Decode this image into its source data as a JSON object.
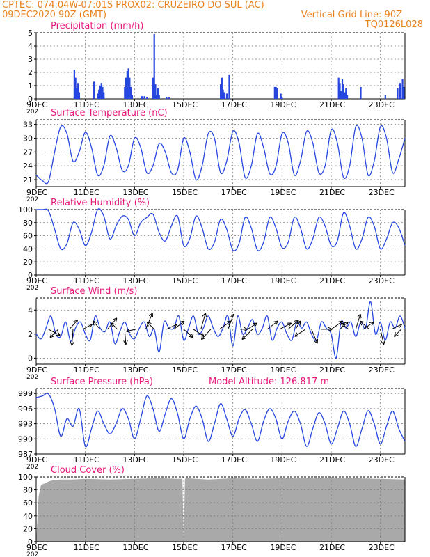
{
  "header": {
    "line1": "CPTEC:   074:04W-07:01S   PROX02: CRUZEIRO DO SUL (AC)",
    "date": "09DEC2020 90Z (GMT)",
    "grid_line": "Vertical Grid Line: 90Z",
    "model": "TQ0126L028",
    "color": "#e8821e"
  },
  "colors": {
    "title": "#e8197c",
    "line": "#2646e0",
    "cloud": "#a9a9a9",
    "arrow": "#000000",
    "grid": "#777777"
  },
  "x_tick_labels": [
    "9DEC",
    "11DEC",
    "13DEC",
    "15DEC",
    "17DEC",
    "19DEC",
    "21DEC",
    "23DEC"
  ],
  "x_tick_days": [
    0,
    2,
    4,
    6,
    8,
    10,
    12,
    14
  ],
  "x_range_days": [
    0,
    15
  ],
  "year_stub": "202",
  "chart_data": [
    {
      "id": "precip",
      "type": "bar",
      "title": "Precipitation (mm/h)",
      "ylim": [
        0,
        5
      ],
      "yticks": [
        0,
        1,
        2,
        3,
        4,
        5
      ],
      "grid": true,
      "bars": [
        [
          1.55,
          2.2
        ],
        [
          1.6,
          1.6
        ],
        [
          1.65,
          0.8
        ],
        [
          1.7,
          1.2
        ],
        [
          1.75,
          0.5
        ],
        [
          2.35,
          1.3
        ],
        [
          2.5,
          0.4
        ],
        [
          2.55,
          0.7
        ],
        [
          2.6,
          1.0
        ],
        [
          2.65,
          1.2
        ],
        [
          2.7,
          0.9
        ],
        [
          2.75,
          0.5
        ],
        [
          3.6,
          0.9
        ],
        [
          3.65,
          1.6
        ],
        [
          3.7,
          2.1
        ],
        [
          3.75,
          2.3
        ],
        [
          3.8,
          1.6
        ],
        [
          3.85,
          0.9
        ],
        [
          3.9,
          0.3
        ],
        [
          4.3,
          0.2
        ],
        [
          4.4,
          0.2
        ],
        [
          4.5,
          0.1
        ],
        [
          4.75,
          1.6
        ],
        [
          4.8,
          4.9
        ],
        [
          4.85,
          1.1
        ],
        [
          4.9,
          0.3
        ],
        [
          4.95,
          0.8
        ],
        [
          5.0,
          0.3
        ],
        [
          5.3,
          0.15
        ],
        [
          5.4,
          0.1
        ],
        [
          7.5,
          1.1
        ],
        [
          7.55,
          1.6
        ],
        [
          7.6,
          0.7
        ],
        [
          7.65,
          0.5
        ],
        [
          7.75,
          0.4
        ],
        [
          7.85,
          1.8
        ],
        [
          9.7,
          0.9
        ],
        [
          9.75,
          0.9
        ],
        [
          9.8,
          0.8
        ],
        [
          9.95,
          0.4
        ],
        [
          10.0,
          0.1
        ],
        [
          12.3,
          1.6
        ],
        [
          12.35,
          1.2
        ],
        [
          12.4,
          0.6
        ],
        [
          12.45,
          1.5
        ],
        [
          12.5,
          1.1
        ],
        [
          12.55,
          0.5
        ],
        [
          12.6,
          0.8
        ],
        [
          12.65,
          0.3
        ],
        [
          13.2,
          0.9
        ],
        [
          14.2,
          0.3
        ],
        [
          14.7,
          0.8
        ],
        [
          14.8,
          1.2
        ],
        [
          14.9,
          1.5
        ],
        [
          14.95,
          0.9
        ]
      ]
    },
    {
      "id": "temp",
      "type": "line",
      "title": "Surface Temperature (nC)",
      "ylim": [
        19.5,
        34
      ],
      "yticks": [
        21,
        24,
        27,
        30,
        33
      ],
      "grid": true,
      "x": [
        0,
        0.25,
        0.5,
        0.75,
        1,
        1.25,
        1.5,
        1.75,
        2,
        2.25,
        2.5,
        2.75,
        3,
        3.25,
        3.5,
        3.75,
        4,
        4.25,
        4.5,
        4.75,
        5,
        5.25,
        5.5,
        5.75,
        6,
        6.25,
        6.5,
        6.75,
        7,
        7.25,
        7.5,
        7.75,
        8,
        8.25,
        8.5,
        8.75,
        9,
        9.25,
        9.5,
        9.75,
        10,
        10.25,
        10.5,
        10.75,
        11,
        11.25,
        11.5,
        11.75,
        12,
        12.25,
        12.5,
        12.75,
        13,
        13.25,
        13.5,
        13.75,
        14,
        14.25,
        14.5,
        14.75,
        15
      ],
      "y": [
        22,
        20.8,
        20.6,
        27,
        32.5,
        31,
        25,
        27,
        31.3,
        28,
        22,
        24,
        30.5,
        28,
        23,
        24,
        30,
        28,
        22.5,
        24,
        28.8,
        27,
        22.5,
        23,
        30,
        27,
        21,
        24,
        31,
        30,
        22.5,
        25,
        31.5,
        29,
        21.5,
        24,
        31,
        28,
        22.3,
        23.8,
        31,
        29,
        22,
        25,
        31.5,
        29,
        22.5,
        24,
        31.8,
        29,
        21.5,
        24,
        32.5,
        30,
        22,
        25,
        32.5,
        30,
        22.5,
        25.5,
        30
      ]
    },
    {
      "id": "rh",
      "type": "line",
      "title": "Relative Humidity (%)",
      "ylim": [
        0,
        100
      ],
      "yticks": [
        0,
        20,
        40,
        60,
        80,
        100
      ],
      "grid": true,
      "x": [
        0,
        0.25,
        0.5,
        0.75,
        1,
        1.25,
        1.5,
        1.75,
        2,
        2.25,
        2.5,
        2.75,
        3,
        3.25,
        3.5,
        3.75,
        4,
        4.25,
        4.5,
        4.75,
        5,
        5.25,
        5.5,
        5.75,
        6,
        6.25,
        6.5,
        6.75,
        7,
        7.25,
        7.5,
        7.75,
        8,
        8.25,
        8.5,
        8.75,
        9,
        9.25,
        9.5,
        9.75,
        10,
        10.25,
        10.5,
        10.75,
        11,
        11.25,
        11.5,
        11.75,
        12,
        12.25,
        12.5,
        12.75,
        13,
        13.25,
        13.5,
        13.75,
        14,
        14.25,
        14.5,
        14.75,
        15
      ],
      "y": [
        100,
        100,
        98,
        70,
        40,
        48,
        80,
        70,
        45,
        65,
        100,
        90,
        55,
        75,
        90,
        85,
        60,
        80,
        88,
        93,
        65,
        52,
        75,
        90,
        45,
        56,
        90,
        72,
        40,
        50,
        85,
        70,
        38,
        48,
        88,
        72,
        38,
        50,
        88,
        72,
        42,
        50,
        88,
        72,
        40,
        55,
        88,
        75,
        45,
        52,
        95,
        75,
        40,
        55,
        88,
        75,
        40,
        55,
        80,
        72,
        45
      ]
    },
    {
      "id": "wind",
      "type": "line",
      "title": "Surface Wind (m/s)",
      "ylim": [
        -0.5,
        5
      ],
      "yticks": [
        0,
        2,
        4
      ],
      "grid": true,
      "x": [
        0,
        0.2,
        0.4,
        0.6,
        0.8,
        1,
        1.2,
        1.4,
        1.6,
        1.8,
        2,
        2.2,
        2.4,
        2.6,
        2.8,
        3,
        3.2,
        3.4,
        3.6,
        3.8,
        4,
        4.2,
        4.4,
        4.6,
        4.8,
        5,
        5.2,
        5.4,
        5.6,
        5.8,
        6,
        6.2,
        6.4,
        6.6,
        6.8,
        7,
        7.2,
        7.4,
        7.6,
        7.8,
        8,
        8.2,
        8.4,
        8.6,
        8.8,
        9,
        9.2,
        9.4,
        9.6,
        9.8,
        10,
        10.2,
        10.4,
        10.6,
        10.8,
        11,
        11.2,
        11.4,
        11.6,
        11.8,
        12,
        12.2,
        12.4,
        12.6,
        12.8,
        13,
        13.2,
        13.4,
        13.6,
        13.8,
        14,
        14.2,
        14.4,
        14.6,
        14.8,
        15
      ],
      "y": [
        2.0,
        1.6,
        2.5,
        3.5,
        2.0,
        1.8,
        3.0,
        1.4,
        2.5,
        3.0,
        2.0,
        1.5,
        3.5,
        2.5,
        2.2,
        3.0,
        1.2,
        2.2,
        3.0,
        2.0,
        1.6,
        2.5,
        3.0,
        1.8,
        2.4,
        0.5,
        3.0,
        2.5,
        2.5,
        3.5,
        1.5,
        2.5,
        3.5,
        2.0,
        2.5,
        3.5,
        2.5,
        1.8,
        2.5,
        3.5,
        1.0,
        3.5,
        2.0,
        2.5,
        3.2,
        2.0,
        2.5,
        3.5,
        1.5,
        2.5,
        3.0,
        2.0,
        1.5,
        3.0,
        2.5,
        3.0,
        2.0,
        1.5,
        3.0,
        2.5,
        2.0,
        0.0,
        3.0,
        2.5,
        3.0,
        1.8,
        3.0,
        2.5,
        4.7,
        2.0,
        3.0,
        1.5,
        3.0,
        2.5,
        3.5,
        2.5
      ],
      "vectors": [
        [
          0.5,
          1.0,
          -0.6
        ],
        [
          0.9,
          -0.7,
          -0.8
        ],
        [
          1.35,
          0.7,
          0.9
        ],
        [
          1.5,
          -0.1,
          -1.6
        ],
        [
          1.9,
          0.8,
          0.5
        ],
        [
          2.6,
          -0.6,
          0.8
        ],
        [
          2.9,
          0.8,
          1.1
        ],
        [
          3.3,
          -0.5,
          0.6
        ],
        [
          3.6,
          0.1,
          -1.5
        ],
        [
          4.05,
          -0.8,
          -0.2
        ],
        [
          4.45,
          0.6,
          1.6
        ],
        [
          4.8,
          -0.6,
          0.7
        ],
        [
          5.3,
          0.9,
          0.5
        ],
        [
          5.6,
          0.9,
          0.8
        ],
        [
          6.0,
          0.8,
          -0.8
        ],
        [
          6.4,
          0.9,
          -0.7
        ],
        [
          6.7,
          0.4,
          1.6
        ],
        [
          7.1,
          -0.8,
          -1.0
        ],
        [
          7.45,
          1.0,
          0.8
        ],
        [
          7.8,
          0.5,
          1.5
        ],
        [
          8.3,
          0.6,
          0.0
        ],
        [
          8.6,
          0.8,
          0.6
        ],
        [
          8.8,
          -0.9,
          -1.0
        ],
        [
          9.4,
          0.9,
          0.8
        ],
        [
          9.9,
          1.0,
          0.6
        ],
        [
          10.25,
          0.9,
          0.9
        ],
        [
          10.55,
          0.4,
          0.8
        ],
        [
          10.95,
          -0.9,
          -0.7
        ],
        [
          11.2,
          0.5,
          -1.4
        ],
        [
          11.6,
          0.9,
          0.0
        ],
        [
          12.0,
          1.0,
          0.8
        ],
        [
          12.35,
          0.7,
          0.7
        ],
        [
          12.7,
          -0.6,
          0.6
        ],
        [
          13.0,
          0.4,
          1.5
        ],
        [
          13.3,
          0.9,
          0.7
        ],
        [
          13.55,
          -0.8,
          0.8
        ],
        [
          14.0,
          0.3,
          -1.5
        ],
        [
          14.45,
          0.9,
          0.5
        ],
        [
          14.85,
          -0.6,
          -0.7
        ]
      ]
    },
    {
      "id": "pressure",
      "type": "line",
      "title": "Surface Pressure (hPa)",
      "annotation": "Model Altitude: 126.817 m",
      "ylim": [
        987,
        1000
      ],
      "yticks": [
        987,
        990,
        993,
        996,
        999
      ],
      "grid": true,
      "x": [
        0,
        0.25,
        0.5,
        0.75,
        1,
        1.25,
        1.5,
        1.75,
        2,
        2.25,
        2.5,
        2.75,
        3,
        3.25,
        3.5,
        3.75,
        4,
        4.25,
        4.5,
        4.75,
        5,
        5.25,
        5.5,
        5.75,
        6,
        6.25,
        6.5,
        6.75,
        7,
        7.25,
        7.5,
        7.75,
        8,
        8.25,
        8.5,
        8.75,
        9,
        9.25,
        9.5,
        9.75,
        10,
        10.25,
        10.5,
        10.75,
        11,
        11.25,
        11.5,
        11.75,
        12,
        12.25,
        12.5,
        12.75,
        13,
        13.25,
        13.5,
        13.75,
        14,
        14.25,
        14.5,
        14.75,
        15
      ],
      "y": [
        998.2,
        998.5,
        998.9,
        996,
        990.5,
        994,
        992.5,
        996,
        988.5,
        992,
        995.5,
        993,
        991,
        993,
        996,
        994,
        990,
        994,
        998.5,
        996,
        991.5,
        995,
        998,
        995,
        990,
        994,
        996.5,
        994,
        989.5,
        993,
        997,
        994,
        990.5,
        994,
        995.8,
        993,
        989.5,
        993.5,
        996,
        994,
        990,
        993.5,
        995.5,
        993,
        988.5,
        992,
        995.2,
        993,
        989,
        992,
        995.5,
        993,
        988.5,
        992,
        995.6,
        993,
        989,
        992.5,
        995.5,
        992,
        989.5
      ]
    },
    {
      "id": "cloud",
      "type": "area",
      "title": "Cloud Cover (%)",
      "ylim": [
        0,
        100
      ],
      "yticks": [
        0,
        20,
        40,
        60,
        80,
        100
      ],
      "grid": true,
      "x": [
        0,
        0.1,
        0.2,
        0.35,
        0.5,
        0.7,
        1,
        1.5,
        2,
        3,
        4,
        5,
        5.95,
        6.0,
        6.05,
        6.1,
        7,
        8,
        9,
        10,
        11,
        12,
        13,
        14,
        15
      ],
      "y": [
        0,
        70,
        88,
        90,
        93,
        95,
        96,
        96,
        97,
        96,
        97,
        98,
        97,
        0,
        97,
        98,
        96,
        98,
        97,
        98,
        98,
        99,
        98,
        97,
        96
      ]
    }
  ]
}
